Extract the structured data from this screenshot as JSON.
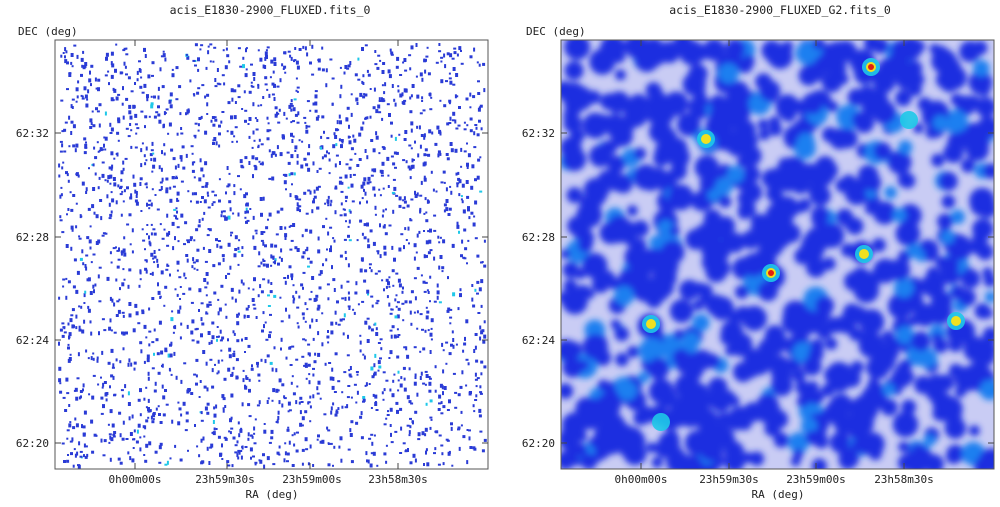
{
  "panels": [
    {
      "title": "acis_E1830-2900_FLUXED.fits_0",
      "ylabel": "DEC (deg)",
      "xlabel": "RA (deg)",
      "yticks": [
        "62:32",
        "62:28",
        "62:24",
        "62:20"
      ],
      "xticks": [
        "0h00m00s",
        "23h59m30s",
        "23h59m00s",
        "23h58m30s"
      ],
      "style": "sparse"
    },
    {
      "title": "acis_E1830-2900_FLUXED_G2.fits_0",
      "ylabel": "DEC (deg)",
      "xlabel": "RA (deg)",
      "yticks": [
        "62:32",
        "62:28",
        "62:24",
        "62:20"
      ],
      "xticks": [
        "0h00m00s",
        "23h59m30s",
        "23h59m00s",
        "23h58m30s"
      ],
      "style": "smoothed"
    }
  ],
  "colors": {
    "background": "#ffffff",
    "low": "#2a3bd6",
    "mid": "#1ec8e8",
    "high": "#f0e020",
    "peak": "#e02010"
  },
  "chart_data": [
    {
      "type": "heatmap",
      "title": "acis_E1830-2900_FLUXED.fits_0",
      "xlabel": "RA (deg)",
      "ylabel": "DEC (deg)",
      "x_tick_labels": [
        "0h00m00s",
        "23h59m30s",
        "23h59m00s",
        "23h58m30s"
      ],
      "y_tick_labels": [
        "62:32",
        "62:28",
        "62:24",
        "62:20"
      ],
      "colormap": "white-blue-cyan-yellow-red",
      "grid": false
    },
    {
      "type": "heatmap",
      "title": "acis_E1830-2900_FLUXED_G2.fits_0",
      "xlabel": "RA (deg)",
      "ylabel": "DEC (deg)",
      "x_tick_labels": [
        "0h00m00s",
        "23h59m30s",
        "23h59m00s",
        "23h58m30s"
      ],
      "y_tick_labels": [
        "62:32",
        "62:28",
        "62:24",
        "62:20"
      ],
      "colormap": "white-blue-cyan-yellow-red",
      "grid": false
    }
  ]
}
